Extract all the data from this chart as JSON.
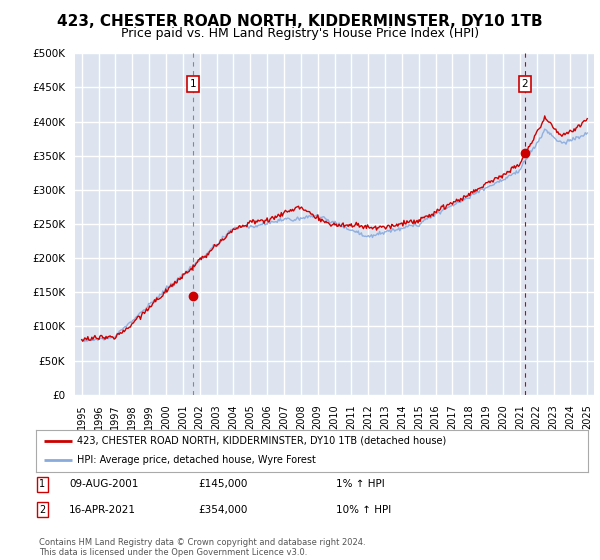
{
  "title": "423, CHESTER ROAD NORTH, KIDDERMINSTER, DY10 1TB",
  "subtitle": "Price paid vs. HM Land Registry's House Price Index (HPI)",
  "title_fontsize": 11,
  "subtitle_fontsize": 9,
  "bg_color": "#dde4f0",
  "grid_color": "#ffffff",
  "red_color": "#cc0000",
  "blue_color": "#88aadd",
  "ylim": [
    0,
    500000
  ],
  "yticks": [
    0,
    50000,
    100000,
    150000,
    200000,
    250000,
    300000,
    350000,
    400000,
    450000,
    500000
  ],
  "ytick_labels": [
    "£0",
    "£50K",
    "£100K",
    "£150K",
    "£200K",
    "£250K",
    "£300K",
    "£350K",
    "£400K",
    "£450K",
    "£500K"
  ],
  "xlim_start": 1994.6,
  "xlim_end": 2025.4,
  "xticks": [
    1995,
    1996,
    1997,
    1998,
    1999,
    2000,
    2001,
    2002,
    2003,
    2004,
    2005,
    2006,
    2007,
    2008,
    2009,
    2010,
    2011,
    2012,
    2013,
    2014,
    2015,
    2016,
    2017,
    2018,
    2019,
    2020,
    2021,
    2022,
    2023,
    2024,
    2025
  ],
  "xtick_labels": [
    "1995",
    "1996",
    "1997",
    "1998",
    "1999",
    "2000",
    "2001",
    "2002",
    "2003",
    "2004",
    "2005",
    "2006",
    "2007",
    "2008",
    "2009",
    "2010",
    "2011",
    "2012",
    "2013",
    "2014",
    "2015",
    "2016",
    "2017",
    "2018",
    "2019",
    "2020",
    "2021",
    "2022",
    "2023",
    "2024",
    "2025"
  ],
  "sale1_x": 2001.6,
  "sale1_y": 145000,
  "sale1_label": "1",
  "sale1_date": "09-AUG-2001",
  "sale1_price": "£145,000",
  "sale1_hpi": "1% ↑ HPI",
  "sale2_x": 2021.3,
  "sale2_y": 354000,
  "sale2_label": "2",
  "sale2_date": "16-APR-2021",
  "sale2_price": "£354,000",
  "sale2_hpi": "10% ↑ HPI",
  "legend_line1": "423, CHESTER ROAD NORTH, KIDDERMINSTER, DY10 1TB (detached house)",
  "legend_line2": "HPI: Average price, detached house, Wyre Forest",
  "footer1": "Contains HM Land Registry data © Crown copyright and database right 2024.",
  "footer2": "This data is licensed under the Open Government Licence v3.0."
}
